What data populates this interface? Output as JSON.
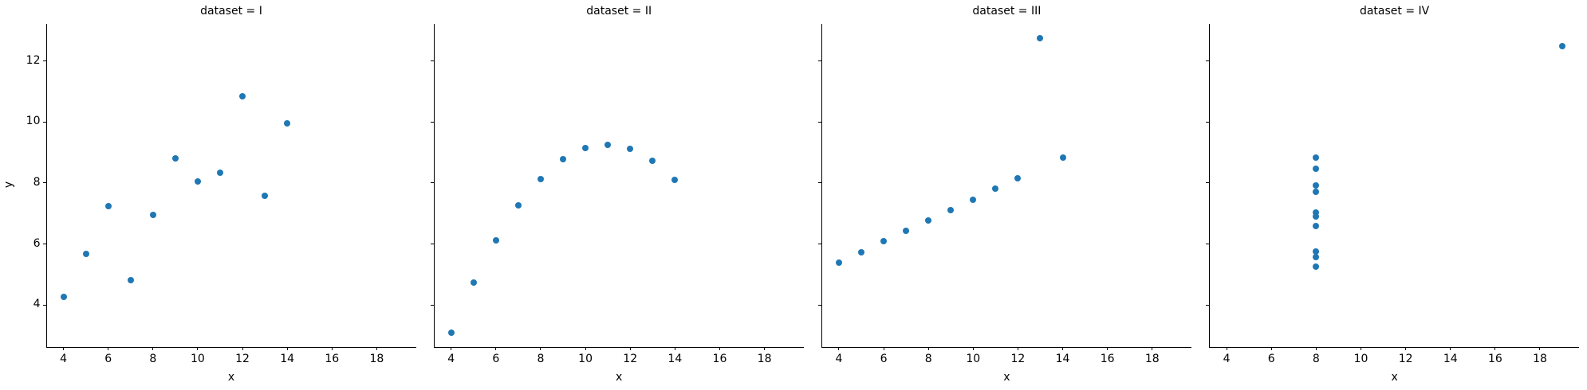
{
  "figure": {
    "background": "#ffffff",
    "axis_color": "#000000",
    "text_color": "#000000"
  },
  "chart_data": {
    "type": "scatter",
    "facet_variable": "dataset",
    "xlabel": "x",
    "ylabel": "y",
    "x_ticks": [
      4,
      6,
      8,
      10,
      12,
      14,
      16,
      18
    ],
    "y_ticks": [
      4,
      6,
      8,
      10,
      12
    ],
    "xlim": [
      3.25,
      19.75
    ],
    "ylim": [
      2.618,
      13.222
    ],
    "grid": false,
    "legend": "none",
    "marker_color": "#1f77b4",
    "marker_diameter_px": 8,
    "facets": [
      {
        "title": "dataset = I",
        "x": [
          10,
          8,
          13,
          9,
          11,
          14,
          6,
          4,
          12,
          7,
          5
        ],
        "y": [
          8.04,
          6.95,
          7.58,
          8.81,
          8.33,
          9.96,
          7.24,
          4.26,
          10.84,
          4.82,
          5.68
        ]
      },
      {
        "title": "dataset = II",
        "x": [
          10,
          8,
          13,
          9,
          11,
          14,
          6,
          4,
          12,
          7,
          5
        ],
        "y": [
          9.14,
          8.14,
          8.74,
          8.77,
          9.26,
          8.1,
          6.13,
          3.1,
          9.13,
          7.26,
          4.74
        ]
      },
      {
        "title": "dataset = III",
        "x": [
          10,
          8,
          13,
          9,
          11,
          14,
          6,
          4,
          12,
          7,
          5
        ],
        "y": [
          7.46,
          6.77,
          12.74,
          7.11,
          7.81,
          8.84,
          6.08,
          5.39,
          8.15,
          6.42,
          5.73
        ]
      },
      {
        "title": "dataset = IV",
        "x": [
          8,
          8,
          8,
          8,
          8,
          8,
          8,
          19,
          8,
          8,
          8
        ],
        "y": [
          6.58,
          5.76,
          7.71,
          8.84,
          8.47,
          7.04,
          5.25,
          12.5,
          5.56,
          7.91,
          6.89
        ]
      }
    ]
  }
}
